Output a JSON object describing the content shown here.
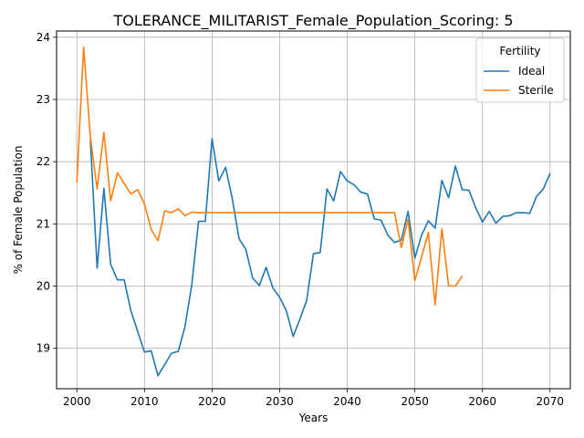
{
  "chart_data": {
    "type": "line",
    "title": "TOLERANCE_MILITARIST_Female_Population_Scoring: 5",
    "xlabel": "Years",
    "ylabel": "% of Female Population",
    "xlim": [
      1997,
      2073
    ],
    "ylim": [
      18.35,
      24.1
    ],
    "x_ticks": [
      2000,
      2010,
      2020,
      2030,
      2040,
      2050,
      2060,
      2070
    ],
    "y_ticks": [
      19,
      20,
      21,
      22,
      23,
      24
    ],
    "grid": true,
    "legend": {
      "title": "Fertility",
      "placement": "top-right"
    },
    "series": [
      {
        "name": "Ideal",
        "color": "#1f77b4",
        "x": [
          2002,
          2003,
          2004,
          2005,
          2006,
          2007,
          2008,
          2009,
          2010,
          2011,
          2012,
          2013,
          2014,
          2015,
          2016,
          2017,
          2018,
          2019,
          2020,
          2021,
          2022,
          2023,
          2024,
          2025,
          2026,
          2027,
          2028,
          2029,
          2030,
          2031,
          2032,
          2033,
          2034,
          2035,
          2036,
          2037,
          2038,
          2039,
          2040,
          2041,
          2042,
          2043,
          2044,
          2045,
          2046,
          2047,
          2048,
          2049,
          2050,
          2051,
          2052,
          2053,
          2054,
          2055,
          2056,
          2057,
          2058,
          2059,
          2060,
          2061,
          2062,
          2063,
          2064,
          2065,
          2066,
          2067,
          2068,
          2069,
          2070
        ],
        "values": [
          22.35,
          20.29,
          21.57,
          20.35,
          20.1,
          20.1,
          19.6,
          19.27,
          18.94,
          18.96,
          18.56,
          18.74,
          18.92,
          18.95,
          19.35,
          20.02,
          21.04,
          21.04,
          22.37,
          21.69,
          21.91,
          21.4,
          20.76,
          20.59,
          20.13,
          20.01,
          20.3,
          19.97,
          19.82,
          19.6,
          19.19,
          19.47,
          19.77,
          20.52,
          20.54,
          21.56,
          21.37,
          21.84,
          21.69,
          21.63,
          21.51,
          21.48,
          21.08,
          21.06,
          20.82,
          20.7,
          20.74,
          21.2,
          20.45,
          20.82,
          21.05,
          20.93,
          21.7,
          21.42,
          21.93,
          21.55,
          21.54,
          21.26,
          21.03,
          21.2,
          21.01,
          21.12,
          21.13,
          21.18,
          21.18,
          21.17,
          21.44,
          21.56,
          21.81
        ]
      },
      {
        "name": "Sterile",
        "color": "#ff7f0e",
        "x": [
          2000,
          2001,
          2002,
          2003,
          2004,
          2005,
          2006,
          2007,
          2008,
          2009,
          2010,
          2011,
          2012,
          2013,
          2014,
          2015,
          2016,
          2017,
          2018,
          2019,
          2020,
          2021,
          2022,
          2023,
          2024,
          2025,
          2026,
          2027,
          2028,
          2029,
          2030,
          2031,
          2032,
          2033,
          2034,
          2035,
          2036,
          2037,
          2038,
          2039,
          2040,
          2041,
          2042,
          2043,
          2044,
          2045,
          2046,
          2047,
          2048,
          2049,
          2050,
          2051,
          2052,
          2053,
          2054,
          2055,
          2056,
          2057
        ],
        "values": [
          21.67,
          23.84,
          22.4,
          21.56,
          22.47,
          21.37,
          21.82,
          21.65,
          21.48,
          21.55,
          21.32,
          20.91,
          20.73,
          21.21,
          21.18,
          21.24,
          21.13,
          21.19,
          21.18,
          21.18,
          21.18,
          21.18,
          21.18,
          21.18,
          21.18,
          21.18,
          21.18,
          21.18,
          21.18,
          21.18,
          21.18,
          21.18,
          21.18,
          21.18,
          21.18,
          21.18,
          21.18,
          21.18,
          21.18,
          21.18,
          21.18,
          21.18,
          21.18,
          21.18,
          21.18,
          21.18,
          21.18,
          21.18,
          20.62,
          21.07,
          20.09,
          20.47,
          20.86,
          19.7,
          20.92,
          20.0,
          20.0,
          20.16
        ]
      }
    ]
  }
}
